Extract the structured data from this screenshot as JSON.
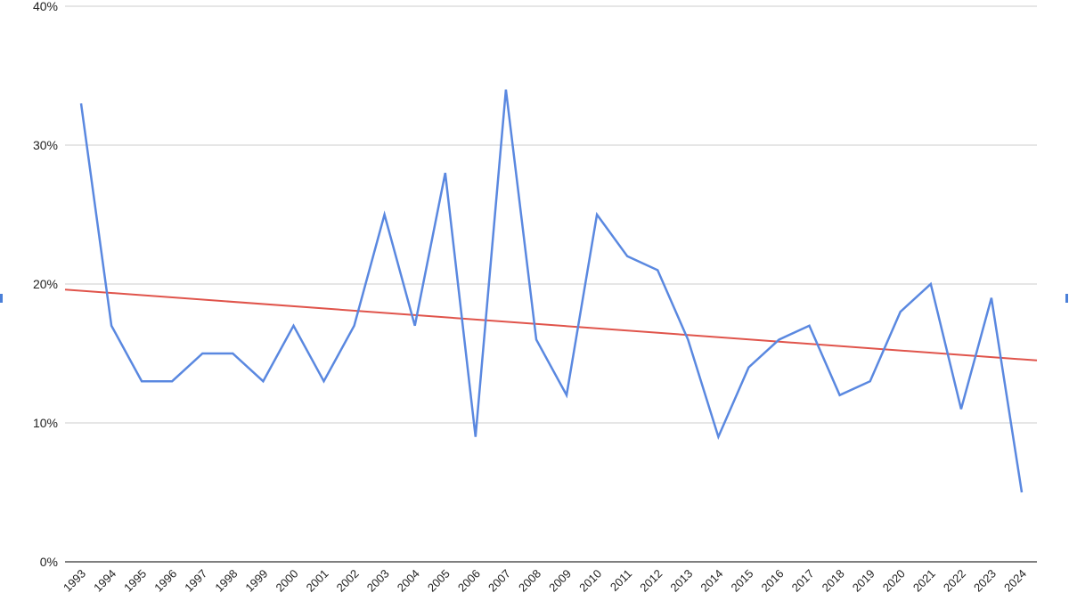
{
  "chart_data": {
    "type": "line",
    "categories": [
      "1993",
      "1994",
      "1995",
      "1996",
      "1997",
      "1998",
      "1999",
      "2000",
      "2001",
      "2002",
      "2003",
      "2004",
      "2005",
      "2006",
      "2007",
      "2008",
      "2009",
      "2010",
      "2011",
      "2012",
      "2013",
      "2014",
      "2015",
      "2016",
      "2017",
      "2018",
      "2019",
      "2020",
      "2021",
      "2022",
      "2023",
      "2024"
    ],
    "series": [
      {
        "color": "#5a88e0",
        "values": [
          33,
          17,
          13,
          13,
          15,
          15,
          13,
          17,
          13,
          17,
          25,
          17,
          28,
          9,
          34,
          16,
          12,
          25,
          22,
          21,
          16,
          9,
          14,
          16,
          17,
          12,
          13,
          18,
          20,
          11,
          19,
          5
        ]
      }
    ],
    "trendline": {
      "color": "#e0544b",
      "start_value": 19.6,
      "end_value": 14.5
    },
    "ylim": [
      0,
      40
    ],
    "yticks": [
      0,
      10,
      20,
      30,
      40
    ],
    "ytick_labels": [
      "0%",
      "10%",
      "20%",
      "30%",
      "40%"
    ],
    "grid": true,
    "legend": "none"
  }
}
